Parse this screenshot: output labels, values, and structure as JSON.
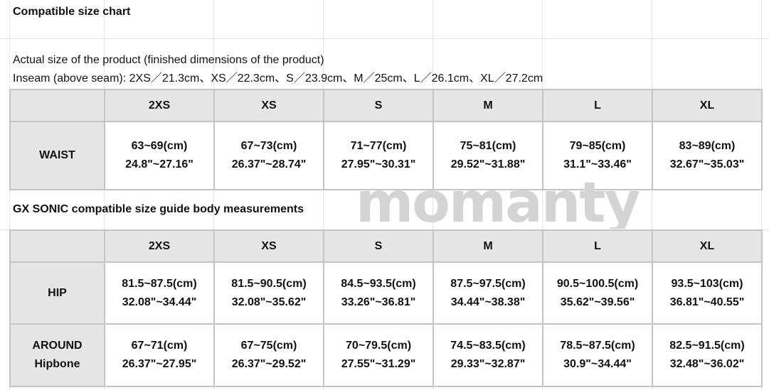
{
  "title": "Compatible size chart",
  "product_note": "Actual size of the product (finished dimensions of the product)",
  "inseam_note": "Inseam (above seam): 2XS／21.3cm、XS／22.3cm、S／23.9cm、M／25cm、L／26.1cm、XL／27.2cm",
  "sizes": [
    "2XS",
    "XS",
    "S",
    "M",
    "L",
    "XL"
  ],
  "table1": {
    "rows": [
      {
        "label": "WAIST",
        "cm": [
          "63~69(cm)",
          "67~73(cm)",
          "71~77(cm)",
          "75~81(cm)",
          "79~85(cm)",
          "83~89(cm)"
        ],
        "in": [
          "24.8\"~27.16\"",
          "26.37\"~28.74\"",
          "27.95\"~30.31\"",
          "29.52\"~31.88\"",
          "31.1\"~33.46\"",
          "32.67\"~35.03\""
        ]
      }
    ]
  },
  "section2_title": "GX SONIC compatible size guide body measurements",
  "table2": {
    "rows": [
      {
        "label": "HIP",
        "cm": [
          "81.5~87.5(cm)",
          "81.5~90.5(cm)",
          "84.5~93.5(cm)",
          "87.5~97.5(cm)",
          "90.5~100.5(cm)",
          "93.5~103(cm)"
        ],
        "in": [
          "32.08\"~34.44\"",
          "32.08\"~35.62\"",
          "33.26\"~36.81\"",
          "34.44\"~38.38\"",
          "35.62\"~39.56\"",
          "36.81\"~40.55\""
        ]
      },
      {
        "label": "AROUND Hipbone",
        "label_lines": [
          "AROUND",
          "Hipbone"
        ],
        "cm": [
          "67~71(cm)",
          "67~75(cm)",
          "70~79.5(cm)",
          "74.5~83.5(cm)",
          "78.5~87.5(cm)",
          "82.5~91.5(cm)"
        ],
        "in": [
          "26.37\"~27.95\"",
          "26.37\"~29.52\"",
          "27.55\"~31.29\"",
          "29.33\"~32.87\"",
          "30.9\"~34.44\"",
          "32.48\"~36.02\""
        ]
      }
    ]
  },
  "watermark": "momanty"
}
